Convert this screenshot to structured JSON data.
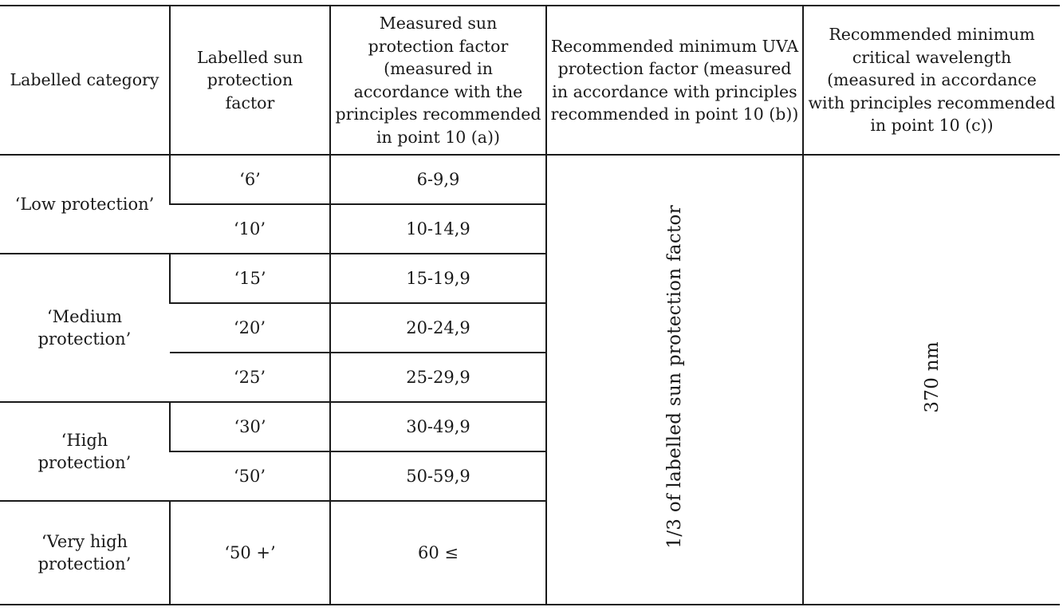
{
  "headers": {
    "category": "Labelled category",
    "labelled_spf": "Labelled sun protection factor",
    "measured_spf": "Measured sun protection factor (measured in accordance with the principles recommended in point 10 (a))",
    "uva_pf": "Recommended minimum UVA protection factor (measured in accordance with principles recommended in point 10 (b))",
    "critical_wavelength": "Recommended minimum critical wavelength (measured in accordance with principles recommended in point 10 (c))"
  },
  "categories": {
    "low": "‘Low protection’",
    "medium": "‘Medium protection’",
    "high": "‘High protection’",
    "very_high": "‘Very high protection’"
  },
  "rows": [
    {
      "labelled": "‘6’",
      "measured": "6-9,9"
    },
    {
      "labelled": "‘10’",
      "measured": "10-14,9"
    },
    {
      "labelled": "‘15’",
      "measured": "15-19,9"
    },
    {
      "labelled": "‘20’",
      "measured": "20-24,9"
    },
    {
      "labelled": "‘25’",
      "measured": "25-29,9"
    },
    {
      "labelled": "‘30’",
      "measured": "30-49,9"
    },
    {
      "labelled": "‘50’",
      "measured": "50-59,9"
    },
    {
      "labelled": "‘50 +’",
      "measured": "60 ≤"
    }
  ],
  "merged": {
    "uva_value": "1/3 of labelled sun protection factor",
    "wavelength_value": "370 nm"
  }
}
